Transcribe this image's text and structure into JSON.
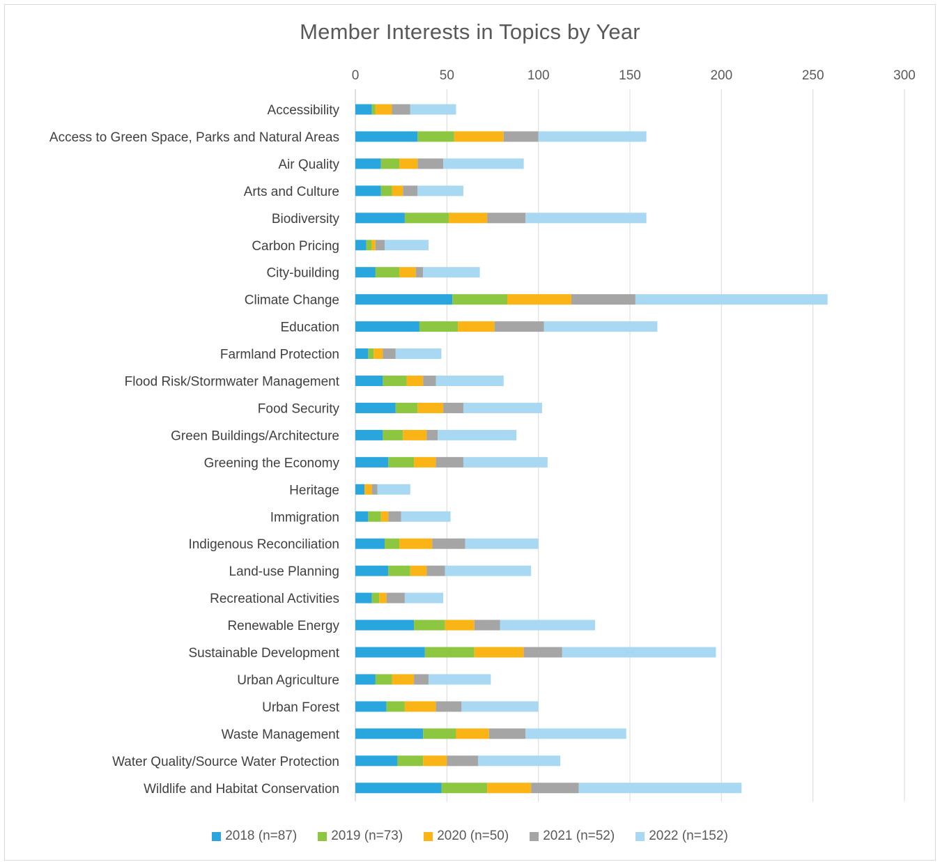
{
  "chart_data": {
    "type": "bar",
    "orientation": "horizontal",
    "stacked": true,
    "title": "Member Interests in Topics by Year",
    "xlabel": "",
    "ylabel": "",
    "xlim": [
      0,
      300
    ],
    "x_ticks": [
      0,
      50,
      100,
      150,
      200,
      250,
      300
    ],
    "x_tick_labels": [
      "0",
      "50",
      "100",
      "150",
      "200",
      "250",
      "300"
    ],
    "x_axis_position": "top",
    "grid": true,
    "legend_position": "bottom",
    "categories": [
      "Accessibility",
      "Access to Green Space, Parks and Natural Areas",
      "Air Quality",
      "Arts and Culture",
      "Biodiversity",
      "Carbon Pricing",
      "City-building",
      "Climate Change",
      "Education",
      "Farmland Protection",
      "Flood Risk/Stormwater Management",
      "Food Security",
      "Green Buildings/Architecture",
      "Greening the Economy",
      "Heritage",
      "Immigration",
      "Indigenous Reconciliation",
      "Land-use Planning",
      "Recreational Activities",
      "Renewable Energy",
      "Sustainable Development",
      "Urban Agriculture",
      "Urban Forest",
      "Waste Management",
      "Water Quality/Source Water Protection",
      "Wildlife and Habitat Conservation"
    ],
    "series": [
      {
        "name": "2018 (n=87)",
        "color": "#2aa6de",
        "values": [
          9,
          34,
          14,
          14,
          27,
          6,
          11,
          53,
          35,
          7,
          15,
          22,
          15,
          18,
          5,
          7,
          16,
          18,
          9,
          32,
          38,
          11,
          17,
          37,
          23,
          47
        ]
      },
      {
        "name": "2019 (n=73)",
        "color": "#8dc640",
        "values": [
          2,
          20,
          10,
          6,
          24,
          3,
          13,
          30,
          21,
          3,
          13,
          12,
          11,
          14,
          0,
          7,
          8,
          12,
          4,
          17,
          27,
          9,
          10,
          18,
          14,
          25
        ]
      },
      {
        "name": "2020 (n=50)",
        "color": "#fbb416",
        "values": [
          9,
          27,
          10,
          6,
          21,
          2,
          9,
          35,
          20,
          5,
          9,
          14,
          13,
          12,
          4,
          4,
          18,
          9,
          4,
          16,
          27,
          12,
          17,
          18,
          13,
          24
        ]
      },
      {
        "name": "2021 (n=52)",
        "color": "#a5a5a5",
        "values": [
          10,
          19,
          14,
          8,
          21,
          5,
          4,
          35,
          27,
          7,
          7,
          11,
          6,
          15,
          3,
          7,
          18,
          10,
          10,
          14,
          21,
          8,
          14,
          20,
          17,
          26
        ]
      },
      {
        "name": "2022 (n=152)",
        "color": "#a9d9f2",
        "values": [
          25,
          59,
          44,
          25,
          66,
          24,
          31,
          105,
          62,
          25,
          37,
          43,
          43,
          46,
          18,
          27,
          40,
          47,
          21,
          52,
          84,
          34,
          42,
          55,
          45,
          89
        ]
      }
    ]
  }
}
